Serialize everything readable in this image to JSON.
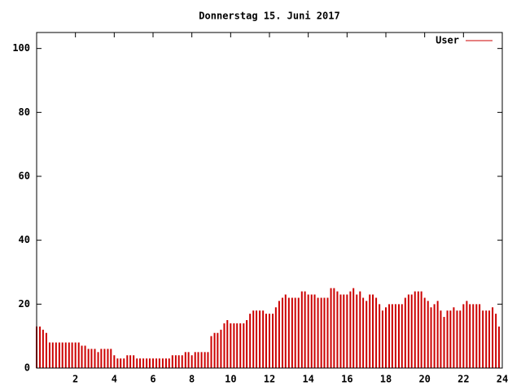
{
  "chart_data": {
    "type": "impulse",
    "title": "Donnerstag 15. Juni 2017",
    "series": [
      {
        "name": "User",
        "color": "#cc0000",
        "x": [
          0,
          0.17,
          0.33,
          0.5,
          0.67,
          0.83,
          1,
          1.17,
          1.33,
          1.5,
          1.67,
          1.83,
          2,
          2.17,
          2.33,
          2.5,
          2.67,
          2.83,
          3,
          3.17,
          3.33,
          3.5,
          3.67,
          3.83,
          4,
          4.17,
          4.33,
          4.5,
          4.67,
          4.83,
          5,
          5.17,
          5.33,
          5.5,
          5.67,
          5.83,
          6,
          6.17,
          6.33,
          6.5,
          6.67,
          6.83,
          7,
          7.17,
          7.33,
          7.5,
          7.67,
          7.83,
          8,
          8.17,
          8.33,
          8.5,
          8.67,
          8.83,
          9,
          9.17,
          9.33,
          9.5,
          9.67,
          9.83,
          10,
          10.17,
          10.33,
          10.5,
          10.67,
          10.83,
          11,
          11.17,
          11.33,
          11.5,
          11.67,
          11.83,
          12,
          12.17,
          12.33,
          12.5,
          12.67,
          12.83,
          13,
          13.17,
          13.33,
          13.5,
          13.67,
          13.83,
          14,
          14.17,
          14.33,
          14.5,
          14.67,
          14.83,
          15,
          15.17,
          15.33,
          15.5,
          15.67,
          15.83,
          16,
          16.17,
          16.33,
          16.5,
          16.67,
          16.83,
          17,
          17.17,
          17.33,
          17.5,
          17.67,
          17.83,
          18,
          18.17,
          18.33,
          18.5,
          18.67,
          18.83,
          19,
          19.17,
          19.33,
          19.5,
          19.67,
          19.83,
          20,
          20.17,
          20.33,
          20.5,
          20.67,
          20.83,
          21,
          21.17,
          21.33,
          21.5,
          21.67,
          21.83,
          22,
          22.17,
          22.33,
          22.5,
          22.67,
          22.83,
          23,
          23.17,
          23.33,
          23.5,
          23.67,
          23.83
        ],
        "values": [
          13,
          13,
          12,
          11,
          8,
          8,
          8,
          8,
          8,
          8,
          8,
          8,
          8,
          8,
          7,
          7,
          6,
          6,
          6,
          5,
          6,
          6,
          6,
          6,
          4,
          3,
          3,
          3,
          4,
          4,
          4,
          3,
          3,
          3,
          3,
          3,
          3,
          3,
          3,
          3,
          3,
          3,
          4,
          4,
          4,
          4,
          5,
          5,
          4,
          5,
          5,
          5,
          5,
          5,
          10,
          11,
          11,
          12,
          14,
          15,
          14,
          14,
          14,
          14,
          14,
          15,
          17,
          18,
          18,
          18,
          18,
          17,
          17,
          17,
          19,
          21,
          22,
          23,
          22,
          22,
          22,
          22,
          24,
          24,
          23,
          23,
          23,
          22,
          22,
          22,
          22,
          25,
          25,
          24,
          23,
          23,
          23,
          24,
          25,
          23,
          24,
          22,
          21,
          23,
          23,
          22,
          20,
          18,
          19,
          20,
          20,
          20,
          20,
          20,
          22,
          23,
          23,
          24,
          24,
          24,
          22,
          21,
          19,
          20,
          21,
          18,
          16,
          18,
          18,
          19,
          18,
          18,
          20,
          21,
          20,
          20,
          20,
          20,
          18,
          18,
          18,
          19,
          17,
          13
        ]
      }
    ],
    "xlim": [
      0,
      24
    ],
    "xticks": [
      2,
      4,
      6,
      8,
      10,
      12,
      14,
      16,
      18,
      20,
      22,
      24
    ],
    "ylim": [
      0,
      105
    ],
    "yticks": [
      0,
      20,
      40,
      60,
      80,
      100
    ],
    "legend": "top-right"
  }
}
